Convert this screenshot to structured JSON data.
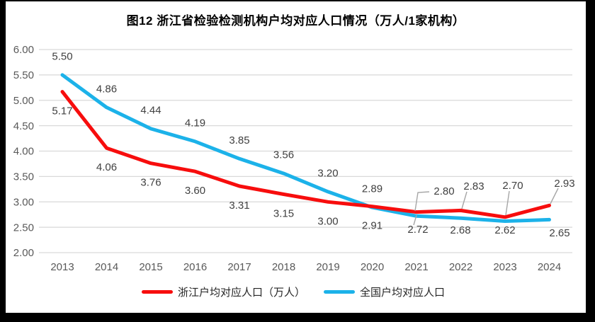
{
  "title": "图12 浙江省检验检测机构户均对应人口情况（万人/1家机构）",
  "legend": {
    "items": [
      {
        "label": "浙江户均对应人口（万人）",
        "color": "#F70D0D"
      },
      {
        "label": "全国户均对应人口",
        "color": "#1CB2E9"
      }
    ]
  },
  "colors": {
    "grid": "#D9D9D9",
    "axis_text": "#595959",
    "data_label": "#404040",
    "leader": "#A6A6A6",
    "series_red": "#F70D0D",
    "series_blue": "#1CB2E9"
  },
  "chart_data": {
    "type": "line",
    "title": "图12 浙江省检验检测机构户均对应人口情况（万人/1家机构）",
    "categories": [
      "2013",
      "2014",
      "2015",
      "2016",
      "2017",
      "2018",
      "2019",
      "2020",
      "2021",
      "2022",
      "2023",
      "2024"
    ],
    "series": [
      {
        "name": "浙江户均对应人口（万人）",
        "color": "#F70D0D",
        "values": [
          5.17,
          4.06,
          3.76,
          3.6,
          3.31,
          3.15,
          3.0,
          2.91,
          2.8,
          2.83,
          2.7,
          2.93
        ]
      },
      {
        "name": "全国户均对应人口",
        "color": "#1CB2E9",
        "values": [
          5.5,
          4.86,
          4.44,
          4.19,
          3.85,
          3.56,
          3.2,
          2.89,
          2.72,
          2.68,
          2.62,
          2.65
        ]
      }
    ],
    "xlabel": "",
    "ylabel": "",
    "ylim": [
      2.0,
      6.0
    ],
    "y_ticks": [
      "6.00",
      "5.50",
      "5.00",
      "4.50",
      "4.00",
      "3.50",
      "3.00",
      "2.50",
      "2.00"
    ],
    "grid": true,
    "legend_position": "bottom"
  }
}
